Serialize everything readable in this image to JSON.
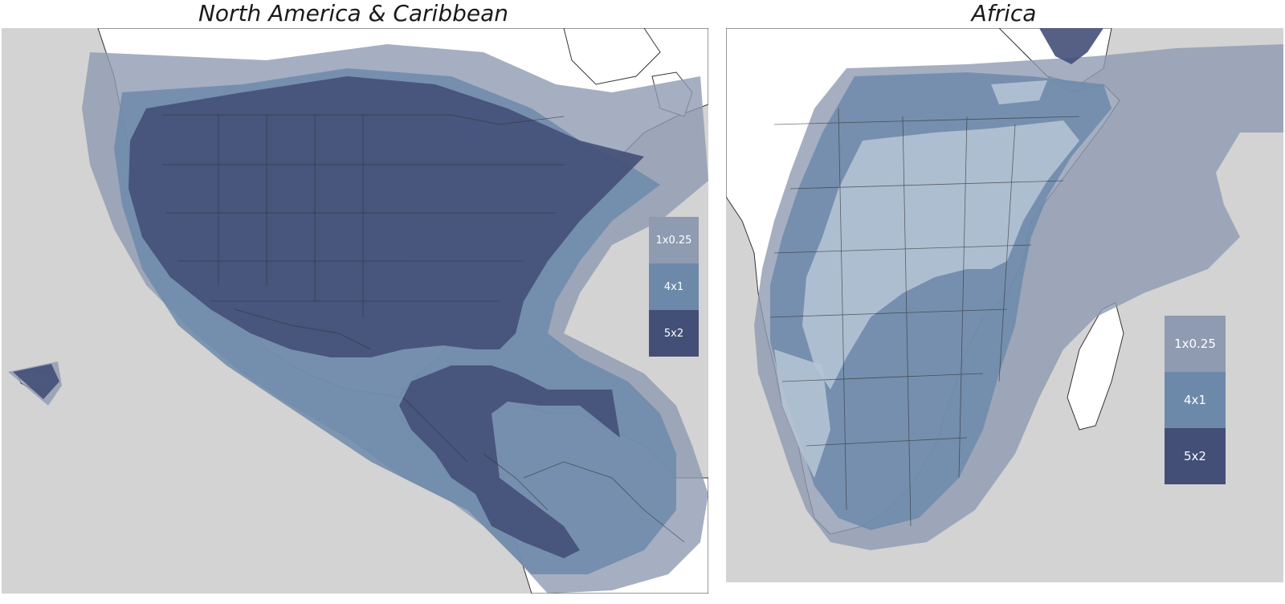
{
  "titles": {
    "north_america": "North America & Caribbean",
    "africa": "Africa"
  },
  "legend": [
    {
      "label": "1x0.25",
      "color": "#8e9bb1"
    },
    {
      "label": "4x1",
      "color": "#6d89aa"
    },
    {
      "label": "5x2",
      "color": "#444f78"
    }
  ],
  "colors": {
    "ocean": "#d3d3d3",
    "land": "#ffffff",
    "borders": "#333333"
  }
}
